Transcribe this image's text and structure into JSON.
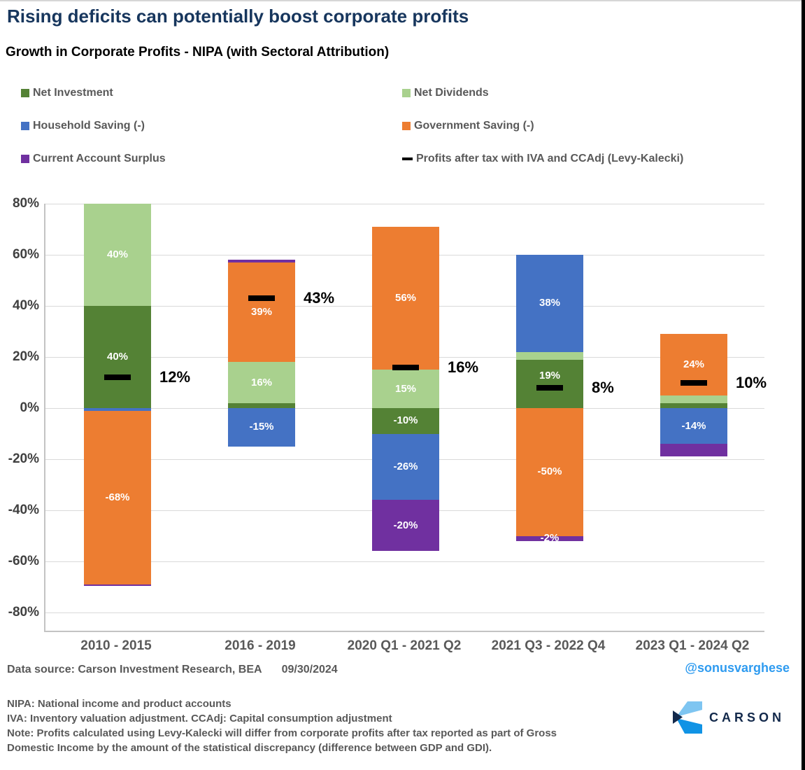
{
  "header": {
    "title": "Rising deficits can potentially boost corporate profits",
    "subtitle": "Growth in Corporate Profits - NIPA (with Sectoral Attribution)"
  },
  "legend": {
    "items": [
      {
        "label": "Net Investment",
        "color": "#548235",
        "marker": "square"
      },
      {
        "label": "Net Dividends",
        "color": "#A9D18E",
        "marker": "square"
      },
      {
        "label": "Household Saving (-)",
        "color": "#4472C4",
        "marker": "square"
      },
      {
        "label": "Government Saving (-)",
        "color": "#ED7D31",
        "marker": "square"
      },
      {
        "label": "Current Account Surplus",
        "color": "#7030A0",
        "marker": "square"
      },
      {
        "label": "Profits after tax with IVA and CCAdj (Levy-Kalecki)",
        "color": "#000000",
        "marker": "dash"
      }
    ]
  },
  "chart_data": {
    "type": "bar",
    "subtype": "stacked-with-total-markers",
    "unit": "%",
    "grid": true,
    "ylim": [
      -80,
      80
    ],
    "ytick_values": [
      80,
      60,
      40,
      20,
      0,
      -20,
      -40,
      -60,
      -80
    ],
    "ytick_labels": [
      "80%",
      "60%",
      "40%",
      "20%",
      "0%",
      "-20%",
      "-40%",
      "-60%",
      "-80%"
    ],
    "categories": [
      "2010 - 2015",
      "2016 - 2019",
      "2020 Q1 - 2021 Q2",
      "2021 Q3 - 2022 Q4",
      "2023 Q1 - 2024 Q2"
    ],
    "series": [
      {
        "name": "Net Investment",
        "key": "net-investment",
        "color": "#548235",
        "values": [
          40,
          2,
          -10,
          19,
          2
        ],
        "data_labels": [
          "40%",
          null,
          "-10%",
          "19%",
          null
        ],
        "label_pos": [
          null,
          null,
          null,
          12.5,
          null
        ]
      },
      {
        "name": "Net Dividends",
        "key": "net-dividends",
        "color": "#A9D18E",
        "values": [
          40,
          16,
          15,
          3,
          3
        ],
        "data_labels": [
          "40%",
          "16%",
          "15%",
          null,
          null
        ],
        "label_pos": [
          null,
          null,
          null,
          null,
          null
        ]
      },
      {
        "name": "Household Saving (-)",
        "key": "household-saving",
        "color": "#4472C4",
        "values": [
          -1,
          -15,
          -26,
          38,
          -14
        ],
        "data_labels": [
          null,
          "-15%",
          "-26%",
          "38%",
          "-14%"
        ],
        "label_pos": [
          null,
          null,
          null,
          null,
          null
        ]
      },
      {
        "name": "Government Saving (-)",
        "key": "government-saving",
        "color": "#ED7D31",
        "values": [
          -68,
          39,
          56,
          -50,
          24
        ],
        "data_labels": [
          "-68%",
          "39%",
          "56%",
          "-50%",
          "24%"
        ],
        "label_pos": [
          null,
          null,
          null,
          null,
          null
        ]
      },
      {
        "name": "Current Account Surplus",
        "key": "current-account-surplus",
        "color": "#7030A0",
        "values": [
          -0.5,
          1,
          -20,
          -2,
          -5
        ],
        "data_labels": [
          null,
          null,
          "-20%",
          "-2%",
          null
        ],
        "label_pos": [
          null,
          null,
          null,
          -51,
          null
        ]
      }
    ],
    "marker_series": {
      "name": "Profits after tax with IVA and CCAdj (Levy-Kalecki)",
      "color": "#000000",
      "values": [
        12,
        43,
        16,
        8,
        10
      ],
      "labels": [
        "12%",
        "43%",
        "16%",
        "8%",
        "10%"
      ]
    },
    "legend_position": "top"
  },
  "footer": {
    "source_label": "Data source: Carson Investment Research, BEA",
    "source_date": "09/30/2024",
    "handle": "@sonusvarghese",
    "notes": [
      "NIPA: National income and product accounts",
      "IVA: Inventory valuation adjustment. CCAdj: Capital consumption adjustment",
      "Note: Profits calculated using Levy-Kalecki will differ from corporate profits after tax reported as part of Gross Domestic Income by the amount of the statistical discrepancy (difference between GDP and GDI)."
    ],
    "logo_text": "CARSON"
  }
}
